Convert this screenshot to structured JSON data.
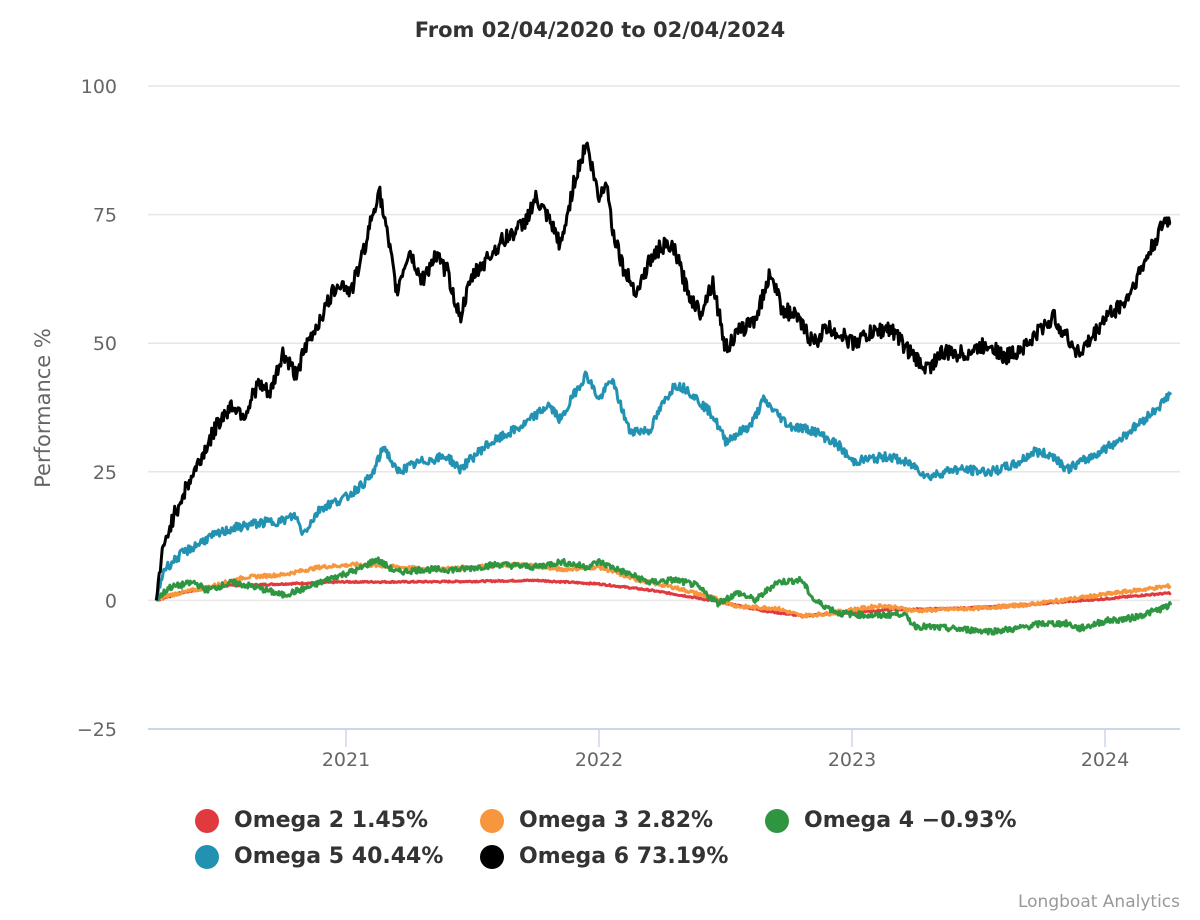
{
  "chart_data": {
    "type": "line",
    "title": "From 02/04/2020 to 02/04/2024",
    "xlabel": "",
    "ylabel": "Performance %",
    "ylim": [
      -25,
      100
    ],
    "yticks": [
      "100",
      "75",
      "50",
      "25",
      "0",
      "−25"
    ],
    "ytick_values": [
      100,
      75,
      50,
      25,
      0,
      -25
    ],
    "xlim": [
      2020.25,
      2024.28
    ],
    "xticks": [
      "2021",
      "2022",
      "2023",
      "2024"
    ],
    "xtick_values": [
      2021,
      2022,
      2023,
      2024
    ],
    "grid": true,
    "legend_position": "bottom",
    "series": [
      {
        "name": "Omega 2",
        "label": "Omega 2 1.45%",
        "color": "#e0393e",
        "points": [
          [
            2020.25,
            0
          ],
          [
            2020.35,
            1.5
          ],
          [
            2020.5,
            2.8
          ],
          [
            2020.75,
            3.2
          ],
          [
            2021.0,
            3.6
          ],
          [
            2021.25,
            3.6
          ],
          [
            2021.5,
            3.7
          ],
          [
            2021.75,
            3.9
          ],
          [
            2022.0,
            3.2
          ],
          [
            2022.2,
            2
          ],
          [
            2022.35,
            0.8
          ],
          [
            2022.5,
            -0.5
          ],
          [
            2022.65,
            -2
          ],
          [
            2022.8,
            -3
          ],
          [
            2022.95,
            -2.5
          ],
          [
            2023.15,
            -1.8
          ],
          [
            2023.4,
            -1.6
          ],
          [
            2023.6,
            -1.2
          ],
          [
            2023.8,
            -0.4
          ],
          [
            2024.0,
            0.3
          ],
          [
            2024.15,
            1
          ],
          [
            2024.26,
            1.45
          ]
        ]
      },
      {
        "name": "Omega 3",
        "label": "Omega 3 2.82%",
        "color": "#f7963c",
        "points": [
          [
            2020.25,
            0
          ],
          [
            2020.3,
            1
          ],
          [
            2020.45,
            2.5
          ],
          [
            2020.6,
            4.5
          ],
          [
            2020.75,
            5
          ],
          [
            2020.9,
            6.5
          ],
          [
            2021.05,
            7
          ],
          [
            2021.2,
            6.5
          ],
          [
            2021.35,
            6
          ],
          [
            2021.5,
            6.5
          ],
          [
            2021.7,
            7
          ],
          [
            2021.85,
            6
          ],
          [
            2022.0,
            6.5
          ],
          [
            2022.15,
            4
          ],
          [
            2022.3,
            2.5
          ],
          [
            2022.45,
            0.5
          ],
          [
            2022.55,
            -1.2
          ],
          [
            2022.7,
            -1.5
          ],
          [
            2022.8,
            -3
          ],
          [
            2022.9,
            -2.6
          ],
          [
            2023.0,
            -1.8
          ],
          [
            2023.12,
            -1
          ],
          [
            2023.25,
            -2
          ],
          [
            2023.5,
            -1.5
          ],
          [
            2023.7,
            -0.8
          ],
          [
            2023.9,
            0.5
          ],
          [
            2024.05,
            1.5
          ],
          [
            2024.26,
            2.82
          ]
        ]
      },
      {
        "name": "Omega 4",
        "label": "Omega 4 −0.93%",
        "color": "#2e9541",
        "points": [
          [
            2020.25,
            0
          ],
          [
            2020.3,
            2.5
          ],
          [
            2020.4,
            3.5
          ],
          [
            2020.45,
            2
          ],
          [
            2020.55,
            3.5
          ],
          [
            2020.65,
            2.5
          ],
          [
            2020.75,
            1
          ],
          [
            2020.85,
            2.5
          ],
          [
            2020.95,
            4.5
          ],
          [
            2021.05,
            6
          ],
          [
            2021.12,
            8
          ],
          [
            2021.2,
            5.5
          ],
          [
            2021.3,
            6
          ],
          [
            2021.45,
            6
          ],
          [
            2021.6,
            7
          ],
          [
            2021.75,
            6.5
          ],
          [
            2021.85,
            7.5
          ],
          [
            2021.95,
            6.5
          ],
          [
            2022.0,
            7.5
          ],
          [
            2022.1,
            5.5
          ],
          [
            2022.2,
            3.5
          ],
          [
            2022.3,
            4
          ],
          [
            2022.38,
            3
          ],
          [
            2022.47,
            -0.5
          ],
          [
            2022.55,
            1.5
          ],
          [
            2022.62,
            0
          ],
          [
            2022.7,
            3.5
          ],
          [
            2022.8,
            4
          ],
          [
            2022.85,
            0
          ],
          [
            2022.95,
            -2.5
          ],
          [
            2023.1,
            -3
          ],
          [
            2023.2,
            -2.5
          ],
          [
            2023.25,
            -5
          ],
          [
            2023.4,
            -5.5
          ],
          [
            2023.55,
            -6
          ],
          [
            2023.65,
            -5.5
          ],
          [
            2023.75,
            -4.5
          ],
          [
            2023.85,
            -4.5
          ],
          [
            2023.9,
            -5.5
          ],
          [
            2024.0,
            -4
          ],
          [
            2024.1,
            -3.5
          ],
          [
            2024.2,
            -2
          ],
          [
            2024.26,
            -0.93
          ]
        ]
      },
      {
        "name": "Omega 5",
        "label": "Omega 5 40.44%",
        "color": "#2192b1",
        "points": [
          [
            2020.25,
            0
          ],
          [
            2020.28,
            6
          ],
          [
            2020.35,
            9
          ],
          [
            2020.45,
            12
          ],
          [
            2020.55,
            14
          ],
          [
            2020.65,
            15
          ],
          [
            2020.75,
            15.5
          ],
          [
            2020.8,
            16.5
          ],
          [
            2020.83,
            13
          ],
          [
            2020.9,
            18
          ],
          [
            2021.0,
            20
          ],
          [
            2021.1,
            24
          ],
          [
            2021.15,
            30
          ],
          [
            2021.2,
            25
          ],
          [
            2021.3,
            27
          ],
          [
            2021.4,
            28
          ],
          [
            2021.45,
            25.5
          ],
          [
            2021.55,
            30
          ],
          [
            2021.7,
            34
          ],
          [
            2021.8,
            38
          ],
          [
            2021.85,
            35
          ],
          [
            2021.9,
            40
          ],
          [
            2021.95,
            44
          ],
          [
            2022.0,
            39
          ],
          [
            2022.05,
            43
          ],
          [
            2022.12,
            33
          ],
          [
            2022.2,
            33
          ],
          [
            2022.25,
            38
          ],
          [
            2022.3,
            42
          ],
          [
            2022.35,
            41
          ],
          [
            2022.45,
            36
          ],
          [
            2022.5,
            31
          ],
          [
            2022.6,
            34
          ],
          [
            2022.65,
            39
          ],
          [
            2022.75,
            34
          ],
          [
            2022.85,
            33
          ],
          [
            2022.95,
            30
          ],
          [
            2023.0,
            27
          ],
          [
            2023.15,
            28
          ],
          [
            2023.25,
            26
          ],
          [
            2023.3,
            24
          ],
          [
            2023.4,
            25.5
          ],
          [
            2023.55,
            25
          ],
          [
            2023.65,
            26.5
          ],
          [
            2023.72,
            29
          ],
          [
            2023.8,
            28
          ],
          [
            2023.85,
            25.5
          ],
          [
            2023.95,
            28
          ],
          [
            2024.05,
            31
          ],
          [
            2024.15,
            35
          ],
          [
            2024.22,
            38
          ],
          [
            2024.26,
            40.44
          ]
        ]
      },
      {
        "name": "Omega 6",
        "label": "Omega 6 73.19%",
        "color": "#000000",
        "points": [
          [
            2020.25,
            0
          ],
          [
            2020.27,
            8
          ],
          [
            2020.3,
            14
          ],
          [
            2020.35,
            20
          ],
          [
            2020.4,
            25
          ],
          [
            2020.45,
            30
          ],
          [
            2020.5,
            35
          ],
          [
            2020.55,
            38
          ],
          [
            2020.6,
            36
          ],
          [
            2020.65,
            42
          ],
          [
            2020.7,
            40
          ],
          [
            2020.75,
            48
          ],
          [
            2020.8,
            44
          ],
          [
            2020.85,
            50
          ],
          [
            2020.92,
            57
          ],
          [
            2020.97,
            62
          ],
          [
            2021.02,
            60
          ],
          [
            2021.07,
            68
          ],
          [
            2021.1,
            74
          ],
          [
            2021.13,
            80
          ],
          [
            2021.17,
            69
          ],
          [
            2021.2,
            60
          ],
          [
            2021.25,
            68
          ],
          [
            2021.3,
            62
          ],
          [
            2021.35,
            67
          ],
          [
            2021.4,
            64
          ],
          [
            2021.45,
            55
          ],
          [
            2021.5,
            63
          ],
          [
            2021.55,
            66
          ],
          [
            2021.62,
            70
          ],
          [
            2021.7,
            73
          ],
          [
            2021.75,
            78
          ],
          [
            2021.8,
            74
          ],
          [
            2021.85,
            69
          ],
          [
            2021.9,
            81
          ],
          [
            2021.95,
            89
          ],
          [
            2022.0,
            78
          ],
          [
            2022.03,
            82
          ],
          [
            2022.05,
            73
          ],
          [
            2022.1,
            64
          ],
          [
            2022.15,
            60
          ],
          [
            2022.2,
            66
          ],
          [
            2022.25,
            69
          ],
          [
            2022.3,
            68
          ],
          [
            2022.35,
            60
          ],
          [
            2022.4,
            56
          ],
          [
            2022.45,
            62
          ],
          [
            2022.5,
            49
          ],
          [
            2022.55,
            52
          ],
          [
            2022.62,
            55
          ],
          [
            2022.68,
            64
          ],
          [
            2022.72,
            57
          ],
          [
            2022.78,
            55
          ],
          [
            2022.85,
            50
          ],
          [
            2022.9,
            53
          ],
          [
            2022.95,
            52
          ],
          [
            2023.0,
            50
          ],
          [
            2023.08,
            52
          ],
          [
            2023.15,
            53
          ],
          [
            2023.2,
            50
          ],
          [
            2023.25,
            47
          ],
          [
            2023.3,
            45
          ],
          [
            2023.35,
            48
          ],
          [
            2023.45,
            48
          ],
          [
            2023.55,
            50
          ],
          [
            2023.6,
            47
          ],
          [
            2023.7,
            50
          ],
          [
            2023.75,
            53
          ],
          [
            2023.8,
            55
          ],
          [
            2023.85,
            51
          ],
          [
            2023.9,
            48
          ],
          [
            2023.95,
            51
          ],
          [
            2024.0,
            55
          ],
          [
            2024.08,
            58
          ],
          [
            2024.15,
            65
          ],
          [
            2024.2,
            70
          ],
          [
            2024.24,
            74
          ],
          [
            2024.26,
            73.19
          ]
        ]
      }
    ]
  },
  "footer": {
    "credit": "Longboat Analytics"
  }
}
